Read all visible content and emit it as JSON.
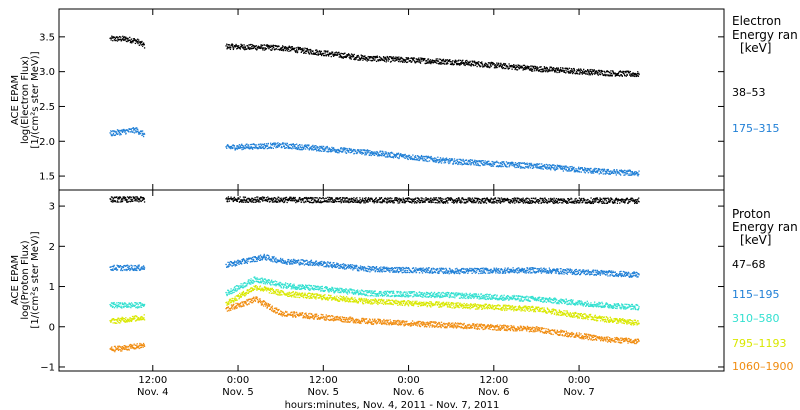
{
  "chart_data": [
    {
      "type": "scatter",
      "panel": "electron",
      "ylabel": [
        "ACE EPAM",
        "log(Electron Flux)",
        "[1/(cm²s ster MeV)]"
      ],
      "ylim": [
        1.3,
        3.9
      ],
      "yticks": [
        1.5,
        2.0,
        2.5,
        3.0,
        3.5
      ],
      "ytick_labels": [
        "1.5",
        "2.0",
        "2.5",
        "3.0",
        "3.5"
      ],
      "legend_title": [
        "Electron",
        "Energy ran",
        "[keV]"
      ],
      "series": [
        {
          "name": "38–53",
          "color": "#000000",
          "segments": [
            {
              "x": [
                0.0,
                0.08,
                0.15,
                0.2
              ],
              "y": [
                3.48,
                3.48,
                3.45,
                3.38
              ]
            },
            {
              "x": [
                0.68,
                1.0,
                1.5,
                2.0,
                2.5,
                2.9,
                3.1
              ],
              "y": [
                3.37,
                3.35,
                3.2,
                3.15,
                3.05,
                2.99,
                2.97
              ]
            }
          ]
        },
        {
          "name": "175–315",
          "color": "#1f7fd6",
          "segments": [
            {
              "x": [
                0.0,
                0.08,
                0.15,
                0.2
              ],
              "y": [
                2.12,
                2.15,
                2.17,
                2.1
              ]
            },
            {
              "x": [
                0.68,
                1.0,
                1.5,
                2.0,
                2.5,
                2.9,
                3.1
              ],
              "y": [
                1.92,
                1.95,
                1.85,
                1.72,
                1.65,
                1.57,
                1.55
              ]
            }
          ]
        }
      ]
    },
    {
      "type": "scatter",
      "panel": "proton",
      "ylabel": [
        "ACE EPAM",
        "log(Proton Flux)",
        "[1/(cm²s ster MeV)]"
      ],
      "ylim": [
        -1.1,
        3.4
      ],
      "yticks": [
        -1,
        0,
        1,
        2,
        3
      ],
      "ytick_labels": [
        "−1",
        "0",
        "1",
        "2",
        "3"
      ],
      "legend_title": [
        "Proton",
        "Energy ran",
        "[keV]"
      ],
      "series": [
        {
          "name": "47–68",
          "color": "#000000",
          "segments": [
            {
              "x": [
                0.0,
                0.2
              ],
              "y": [
                3.18,
                3.18
              ]
            },
            {
              "x": [
                0.68,
                1.5,
                2.5,
                3.1
              ],
              "y": [
                3.18,
                3.16,
                3.15,
                3.15
              ]
            }
          ]
        },
        {
          "name": "115–195",
          "color": "#1f7fd6",
          "segments": [
            {
              "x": [
                0.0,
                0.2
              ],
              "y": [
                1.48,
                1.48
              ]
            },
            {
              "x": [
                0.68,
                0.9,
                1.0,
                1.2,
                1.5,
                2.0,
                2.5,
                2.9,
                3.1
              ],
              "y": [
                1.55,
                1.75,
                1.65,
                1.6,
                1.45,
                1.4,
                1.42,
                1.35,
                1.3
              ]
            }
          ]
        },
        {
          "name": "310–580",
          "color": "#33e0d0",
          "segments": [
            {
              "x": [
                0.0,
                0.2
              ],
              "y": [
                0.55,
                0.55
              ]
            },
            {
              "x": [
                0.68,
                0.85,
                1.0,
                1.5,
                2.0,
                2.5,
                2.9,
                3.1
              ],
              "y": [
                0.85,
                1.2,
                1.05,
                0.85,
                0.8,
                0.7,
                0.55,
                0.5
              ]
            }
          ]
        },
        {
          "name": "795–1193",
          "color": "#d9e800",
          "segments": [
            {
              "x": [
                0.0,
                0.2
              ],
              "y": [
                0.15,
                0.25
              ]
            },
            {
              "x": [
                0.68,
                0.85,
                1.0,
                1.5,
                2.0,
                2.5,
                2.9,
                3.1
              ],
              "y": [
                0.6,
                1.0,
                0.85,
                0.65,
                0.55,
                0.45,
                0.2,
                0.1
              ]
            }
          ]
        },
        {
          "name": "1060–1900",
          "color": "#f08c10",
          "segments": [
            {
              "x": [
                0.0,
                0.2
              ],
              "y": [
                -0.55,
                -0.45
              ]
            },
            {
              "x": [
                0.68,
                0.85,
                1.0,
                1.5,
                2.0,
                2.5,
                2.9,
                3.1
              ],
              "y": [
                0.45,
                0.7,
                0.35,
                0.15,
                0.05,
                -0.05,
                -0.3,
                -0.35
              ]
            }
          ]
        }
      ]
    }
  ],
  "x_axis": {
    "xlim": [
      -0.3,
      3.6
    ],
    "ticks": [
      {
        "x": 0.25,
        "line1": "12:00",
        "line2": "Nov. 4"
      },
      {
        "x": 0.75,
        "line1": "0:00",
        "line2": "Nov. 5"
      },
      {
        "x": 1.25,
        "line1": "12:00",
        "line2": "Nov. 5"
      },
      {
        "x": 1.75,
        "line1": "0:00",
        "line2": "Nov. 6"
      },
      {
        "x": 2.25,
        "line1": "12:00",
        "line2": "Nov. 6"
      },
      {
        "x": 2.75,
        "line1": "0:00",
        "line2": "Nov. 7"
      }
    ],
    "label": "hours:minutes, Nov.  4, 2011 - Nov.  7, 2011"
  }
}
